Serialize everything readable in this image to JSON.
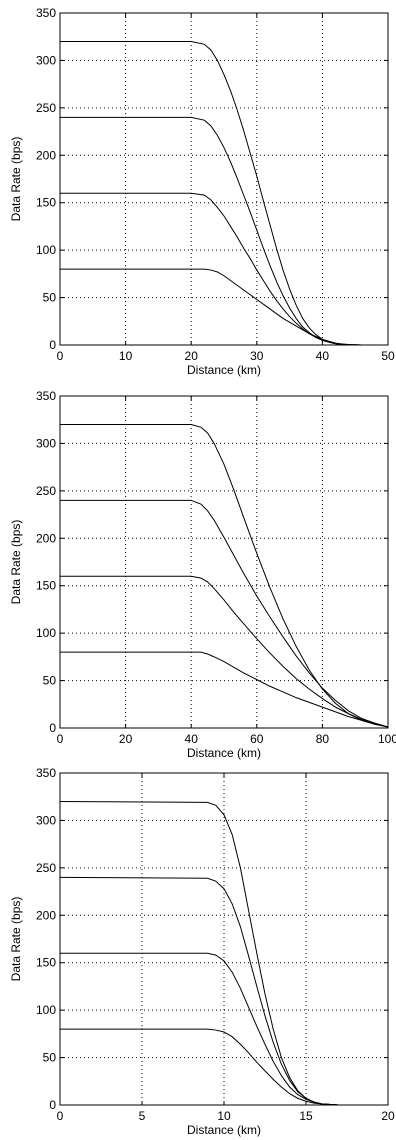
{
  "chart_data": [
    {
      "type": "line",
      "xlabel": "Distance (km)",
      "ylabel": "Data Rate (bps)",
      "xlim": [
        0,
        50
      ],
      "ylim": [
        0,
        350
      ],
      "xticks": [
        0,
        10,
        20,
        30,
        40,
        50
      ],
      "yticks": [
        0,
        50,
        100,
        150,
        200,
        250,
        300,
        350
      ],
      "grid": true,
      "line_color": "#000000",
      "series": [
        {
          "x": [
            0,
            20,
            22,
            23,
            24,
            25,
            26,
            27,
            28,
            29,
            30,
            31,
            32,
            33,
            34,
            35,
            36,
            37,
            38,
            39,
            40,
            41,
            42,
            43,
            44,
            45,
            46,
            48,
            50
          ],
          "values": [
            320,
            320,
            317,
            311,
            300,
            285,
            268,
            248,
            226,
            202,
            178,
            152,
            127,
            102,
            79,
            59,
            42,
            28,
            18,
            11,
            6,
            3,
            1.5,
            0.8,
            0.3,
            0.1,
            0,
            0,
            0
          ]
        },
        {
          "x": [
            0,
            20,
            22,
            23,
            24,
            25,
            26,
            27,
            28,
            29,
            30,
            31,
            32,
            33,
            34,
            35,
            36,
            37,
            38,
            39,
            40,
            41,
            42,
            43,
            44,
            45,
            46,
            48,
            50
          ],
          "values": [
            240,
            240,
            237,
            231,
            221,
            208,
            193,
            176,
            158,
            140,
            121,
            102,
            84,
            67,
            52,
            39,
            28,
            19,
            13,
            8,
            5,
            3,
            1.5,
            0.8,
            0.3,
            0.1,
            0,
            0,
            0
          ]
        },
        {
          "x": [
            0,
            20,
            22,
            23,
            24,
            25,
            26,
            27,
            28,
            29,
            30,
            31,
            32,
            33,
            34,
            35,
            36,
            37,
            38,
            39,
            40,
            41,
            42,
            43,
            44,
            45,
            46,
            48,
            50
          ],
          "values": [
            160,
            160,
            158,
            153,
            145,
            136,
            125,
            114,
            102,
            91,
            79,
            68,
            57,
            47,
            38,
            30,
            23,
            17,
            12,
            8,
            5,
            3,
            1.5,
            0.8,
            0.3,
            0.1,
            0,
            0,
            0
          ]
        },
        {
          "x": [
            0,
            20,
            22,
            23,
            24,
            25,
            26,
            27,
            28,
            29,
            30,
            31,
            32,
            33,
            34,
            35,
            36,
            37,
            38,
            39,
            40,
            41,
            42,
            43,
            44,
            45,
            46,
            48,
            50
          ],
          "values": [
            80,
            80,
            80,
            79,
            77,
            73,
            68,
            63,
            58,
            53,
            48,
            43,
            38,
            33,
            28,
            24,
            20,
            16,
            12,
            9,
            6,
            4,
            2,
            1,
            0.5,
            0.2,
            0,
            0,
            0
          ]
        }
      ]
    },
    {
      "type": "line",
      "xlabel": "Distance (km)",
      "ylabel": "Data Rate (bps)",
      "xlim": [
        0,
        100
      ],
      "ylim": [
        0,
        350
      ],
      "xticks": [
        0,
        20,
        40,
        60,
        80,
        100
      ],
      "yticks": [
        0,
        50,
        100,
        150,
        200,
        250,
        300,
        350
      ],
      "grid": true,
      "line_color": "#000000",
      "series": [
        {
          "x": [
            0,
            40,
            43,
            45,
            47,
            50,
            53,
            56,
            60,
            64,
            68,
            72,
            76,
            80,
            84,
            88,
            92,
            96,
            100
          ],
          "values": [
            320,
            320,
            317,
            311,
            300,
            278,
            251,
            222,
            184,
            148,
            115,
            86,
            61,
            41,
            26,
            15,
            8,
            4,
            1
          ]
        },
        {
          "x": [
            0,
            40,
            43,
            45,
            47,
            50,
            53,
            56,
            60,
            64,
            68,
            72,
            76,
            80,
            84,
            88,
            92,
            96,
            100
          ],
          "values": [
            240,
            240,
            236,
            229,
            219,
            201,
            182,
            163,
            139,
            117,
            96,
            76,
            58,
            42,
            29,
            18,
            10,
            5,
            1
          ]
        },
        {
          "x": [
            0,
            40,
            43,
            45,
            47,
            50,
            53,
            56,
            60,
            64,
            68,
            72,
            76,
            80,
            84,
            88,
            92,
            96,
            100
          ],
          "values": [
            160,
            160,
            158,
            154,
            147,
            135,
            122,
            110,
            94,
            79,
            65,
            52,
            41,
            31,
            22,
            15,
            9,
            5,
            1
          ]
        },
        {
          "x": [
            0,
            40,
            43,
            45,
            47,
            50,
            53,
            56,
            60,
            64,
            68,
            72,
            76,
            80,
            84,
            88,
            92,
            96,
            100
          ],
          "values": [
            80,
            80,
            80,
            78,
            75,
            70,
            64,
            58,
            51,
            44,
            38,
            32,
            27,
            22,
            17,
            12,
            8,
            4,
            1
          ]
        }
      ]
    },
    {
      "type": "line",
      "xlabel": "Distance (km)",
      "ylabel": "Data Rate (bps)",
      "xlim": [
        0,
        20
      ],
      "ylim": [
        0,
        350
      ],
      "xticks": [
        0,
        5,
        10,
        15,
        20
      ],
      "yticks": [
        0,
        50,
        100,
        150,
        200,
        250,
        300,
        350
      ],
      "grid": true,
      "line_color": "#000000",
      "series": [
        {
          "x": [
            0,
            9,
            9.5,
            10,
            10.5,
            11,
            11.5,
            12,
            12.5,
            13,
            13.5,
            14,
            14.5,
            15,
            15.5,
            16,
            17,
            18,
            20
          ],
          "values": [
            320,
            319,
            316,
            306,
            285,
            250,
            205,
            160,
            117,
            80,
            50,
            29,
            15,
            7,
            3,
            1,
            0,
            0,
            0
          ]
        },
        {
          "x": [
            0,
            9,
            9.5,
            10,
            10.5,
            11,
            11.5,
            12,
            12.5,
            13,
            13.5,
            14,
            14.5,
            15,
            15.5,
            16,
            17,
            18,
            20
          ],
          "values": [
            240,
            239,
            236,
            228,
            212,
            188,
            157,
            125,
            94,
            66,
            43,
            26,
            14,
            7,
            3,
            1,
            0,
            0,
            0
          ]
        },
        {
          "x": [
            0,
            9,
            9.5,
            10,
            10.5,
            11,
            11.5,
            12,
            12.5,
            13,
            13.5,
            14,
            14.5,
            15,
            15.5,
            16,
            17,
            18,
            20
          ],
          "values": [
            160,
            160,
            158,
            152,
            140,
            123,
            103,
            83,
            64,
            46,
            31,
            19,
            11,
            6,
            3,
            1,
            0,
            0,
            0
          ]
        },
        {
          "x": [
            0,
            9,
            9.5,
            10,
            10.5,
            11,
            11.5,
            12,
            12.5,
            13,
            13.5,
            14,
            14.5,
            15,
            15.5,
            16,
            17,
            18,
            20
          ],
          "values": [
            80,
            80,
            79,
            77,
            72,
            64,
            55,
            45,
            36,
            27,
            19,
            12,
            7,
            4,
            2,
            1,
            0,
            0,
            0
          ]
        }
      ]
    }
  ]
}
